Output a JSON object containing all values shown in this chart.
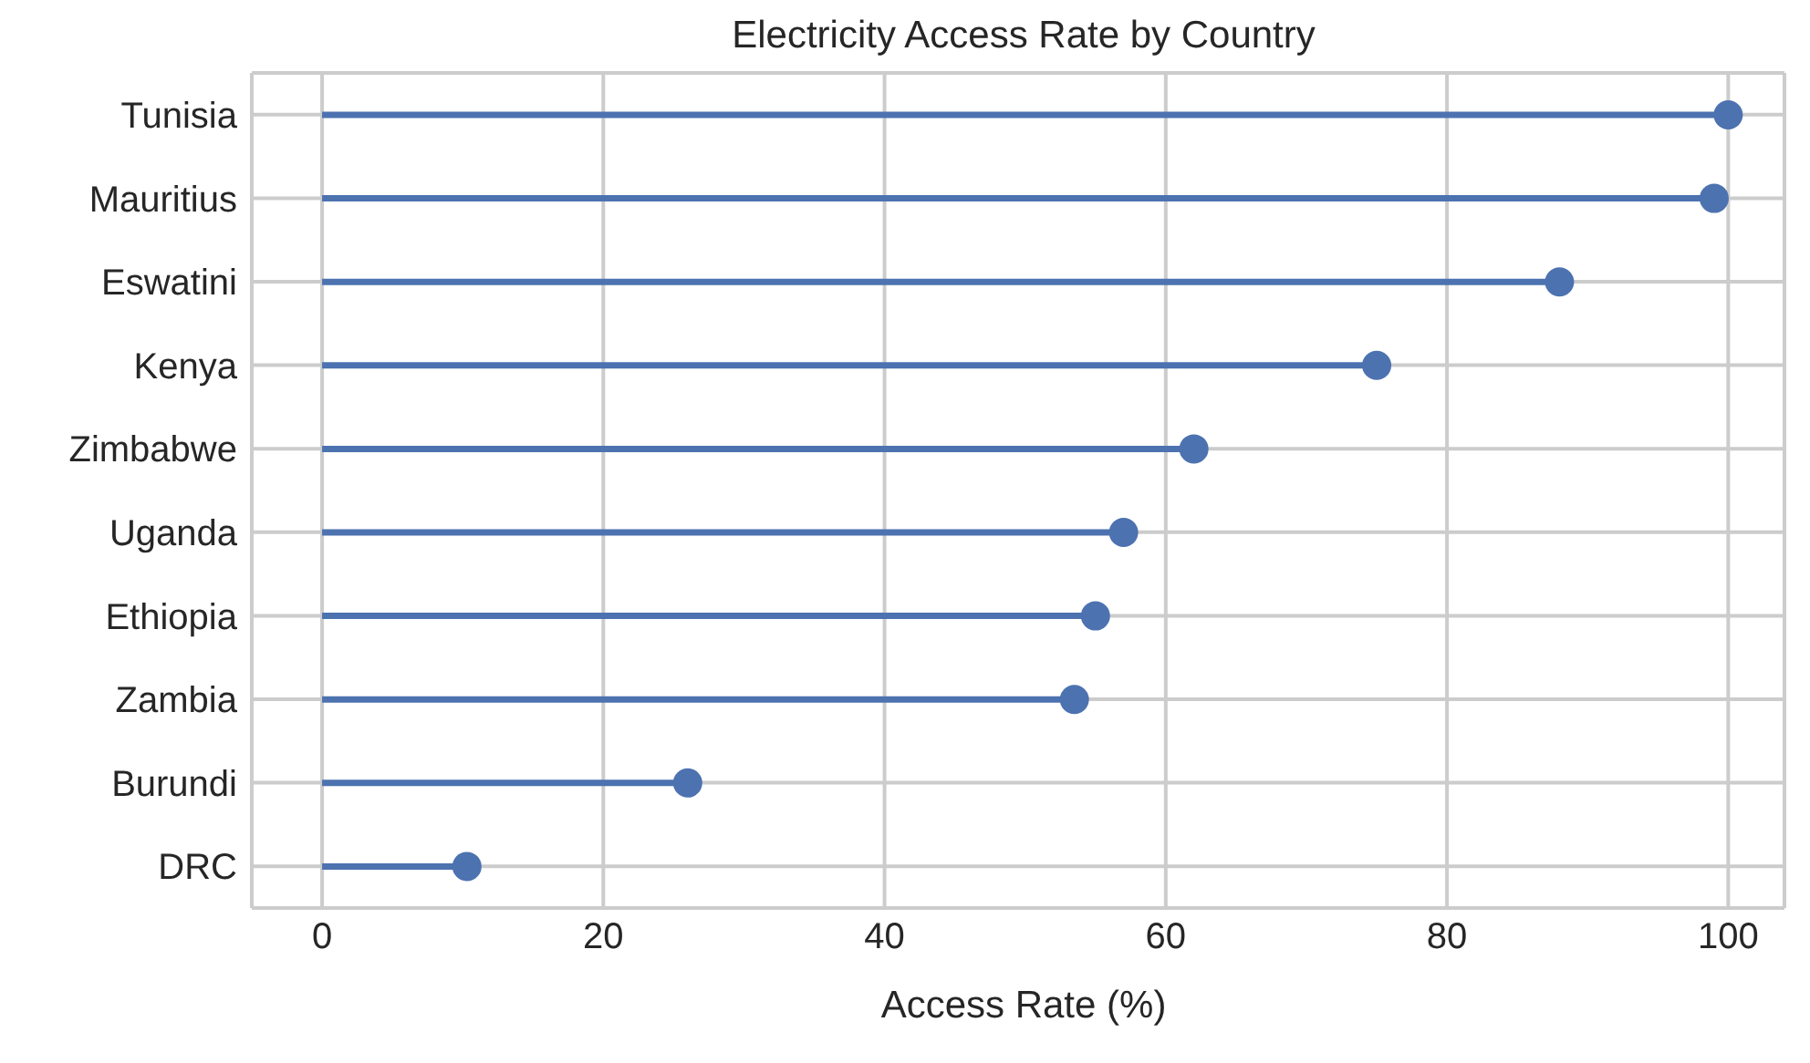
{
  "chart_data": {
    "type": "lollipop",
    "orientation": "horizontal",
    "title": "Electricity Access Rate by Country",
    "xlabel": "Access Rate (%)",
    "categories": [
      "Tunisia",
      "Mauritius",
      "Eswatini",
      "Kenya",
      "Zimbabwe",
      "Uganda",
      "Ethiopia",
      "Zambia",
      "Burundi",
      "DRC"
    ],
    "values": [
      100,
      99,
      88,
      75,
      62,
      57,
      55,
      53.5,
      26,
      10.3
    ],
    "color": "#4c72b0",
    "marker": "circle",
    "xlim": [
      -5,
      104
    ],
    "xticks": [
      0,
      20,
      40,
      60,
      80,
      100
    ],
    "grid": true
  }
}
